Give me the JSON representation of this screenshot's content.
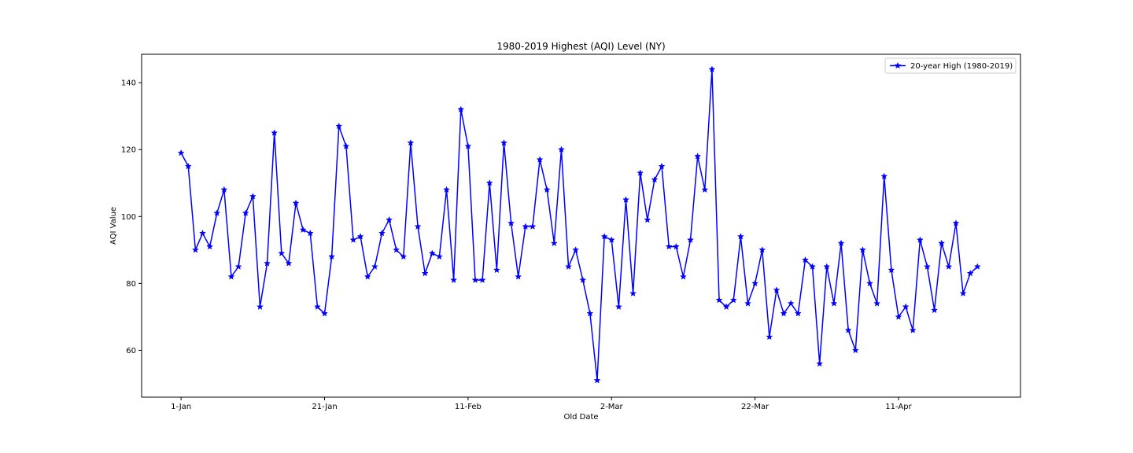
{
  "chart_data": {
    "type": "line",
    "title": "1980-2019 Highest (AQI) Level (NY)",
    "xlabel": "Old Date",
    "ylabel": "AQI Value",
    "x_ticks": [
      {
        "label": "1-Jan",
        "index": 0
      },
      {
        "label": "21-Jan",
        "index": 20
      },
      {
        "label": "11-Feb",
        "index": 40
      },
      {
        "label": "2-Mar",
        "index": 60
      },
      {
        "label": "22-Mar",
        "index": 80
      },
      {
        "label": "11-Apr",
        "index": 100
      }
    ],
    "y_ticks": [
      60,
      80,
      100,
      120,
      140
    ],
    "xlim": [
      -5.5,
      117
    ],
    "ylim": [
      46,
      148.5
    ],
    "legend_position": "top-right",
    "grid": false,
    "series": [
      {
        "name": "20-year High (1980-2019)",
        "color": "#0000ff",
        "marker": "star",
        "values": [
          119,
          115,
          90,
          95,
          91,
          101,
          108,
          82,
          85,
          101,
          106,
          73,
          86,
          125,
          89,
          86,
          104,
          96,
          95,
          73,
          71,
          88,
          127,
          121,
          93,
          94,
          82,
          85,
          95,
          99,
          90,
          88,
          122,
          97,
          83,
          89,
          88,
          108,
          81,
          132,
          121,
          81,
          81,
          110,
          84,
          122,
          98,
          82,
          97,
          97,
          117,
          108,
          92,
          120,
          85,
          90,
          81,
          71,
          51,
          94,
          93,
          73,
          105,
          77,
          113,
          99,
          111,
          115,
          91,
          91,
          82,
          93,
          118,
          108,
          144,
          75,
          73,
          75,
          94,
          74,
          80,
          90,
          64,
          78,
          71,
          74,
          71,
          87,
          85,
          56,
          85,
          74,
          92,
          66,
          60,
          90,
          80,
          74,
          112,
          84,
          70,
          73,
          66,
          93,
          85,
          72,
          92,
          85,
          98,
          77,
          83,
          85
        ]
      }
    ]
  }
}
